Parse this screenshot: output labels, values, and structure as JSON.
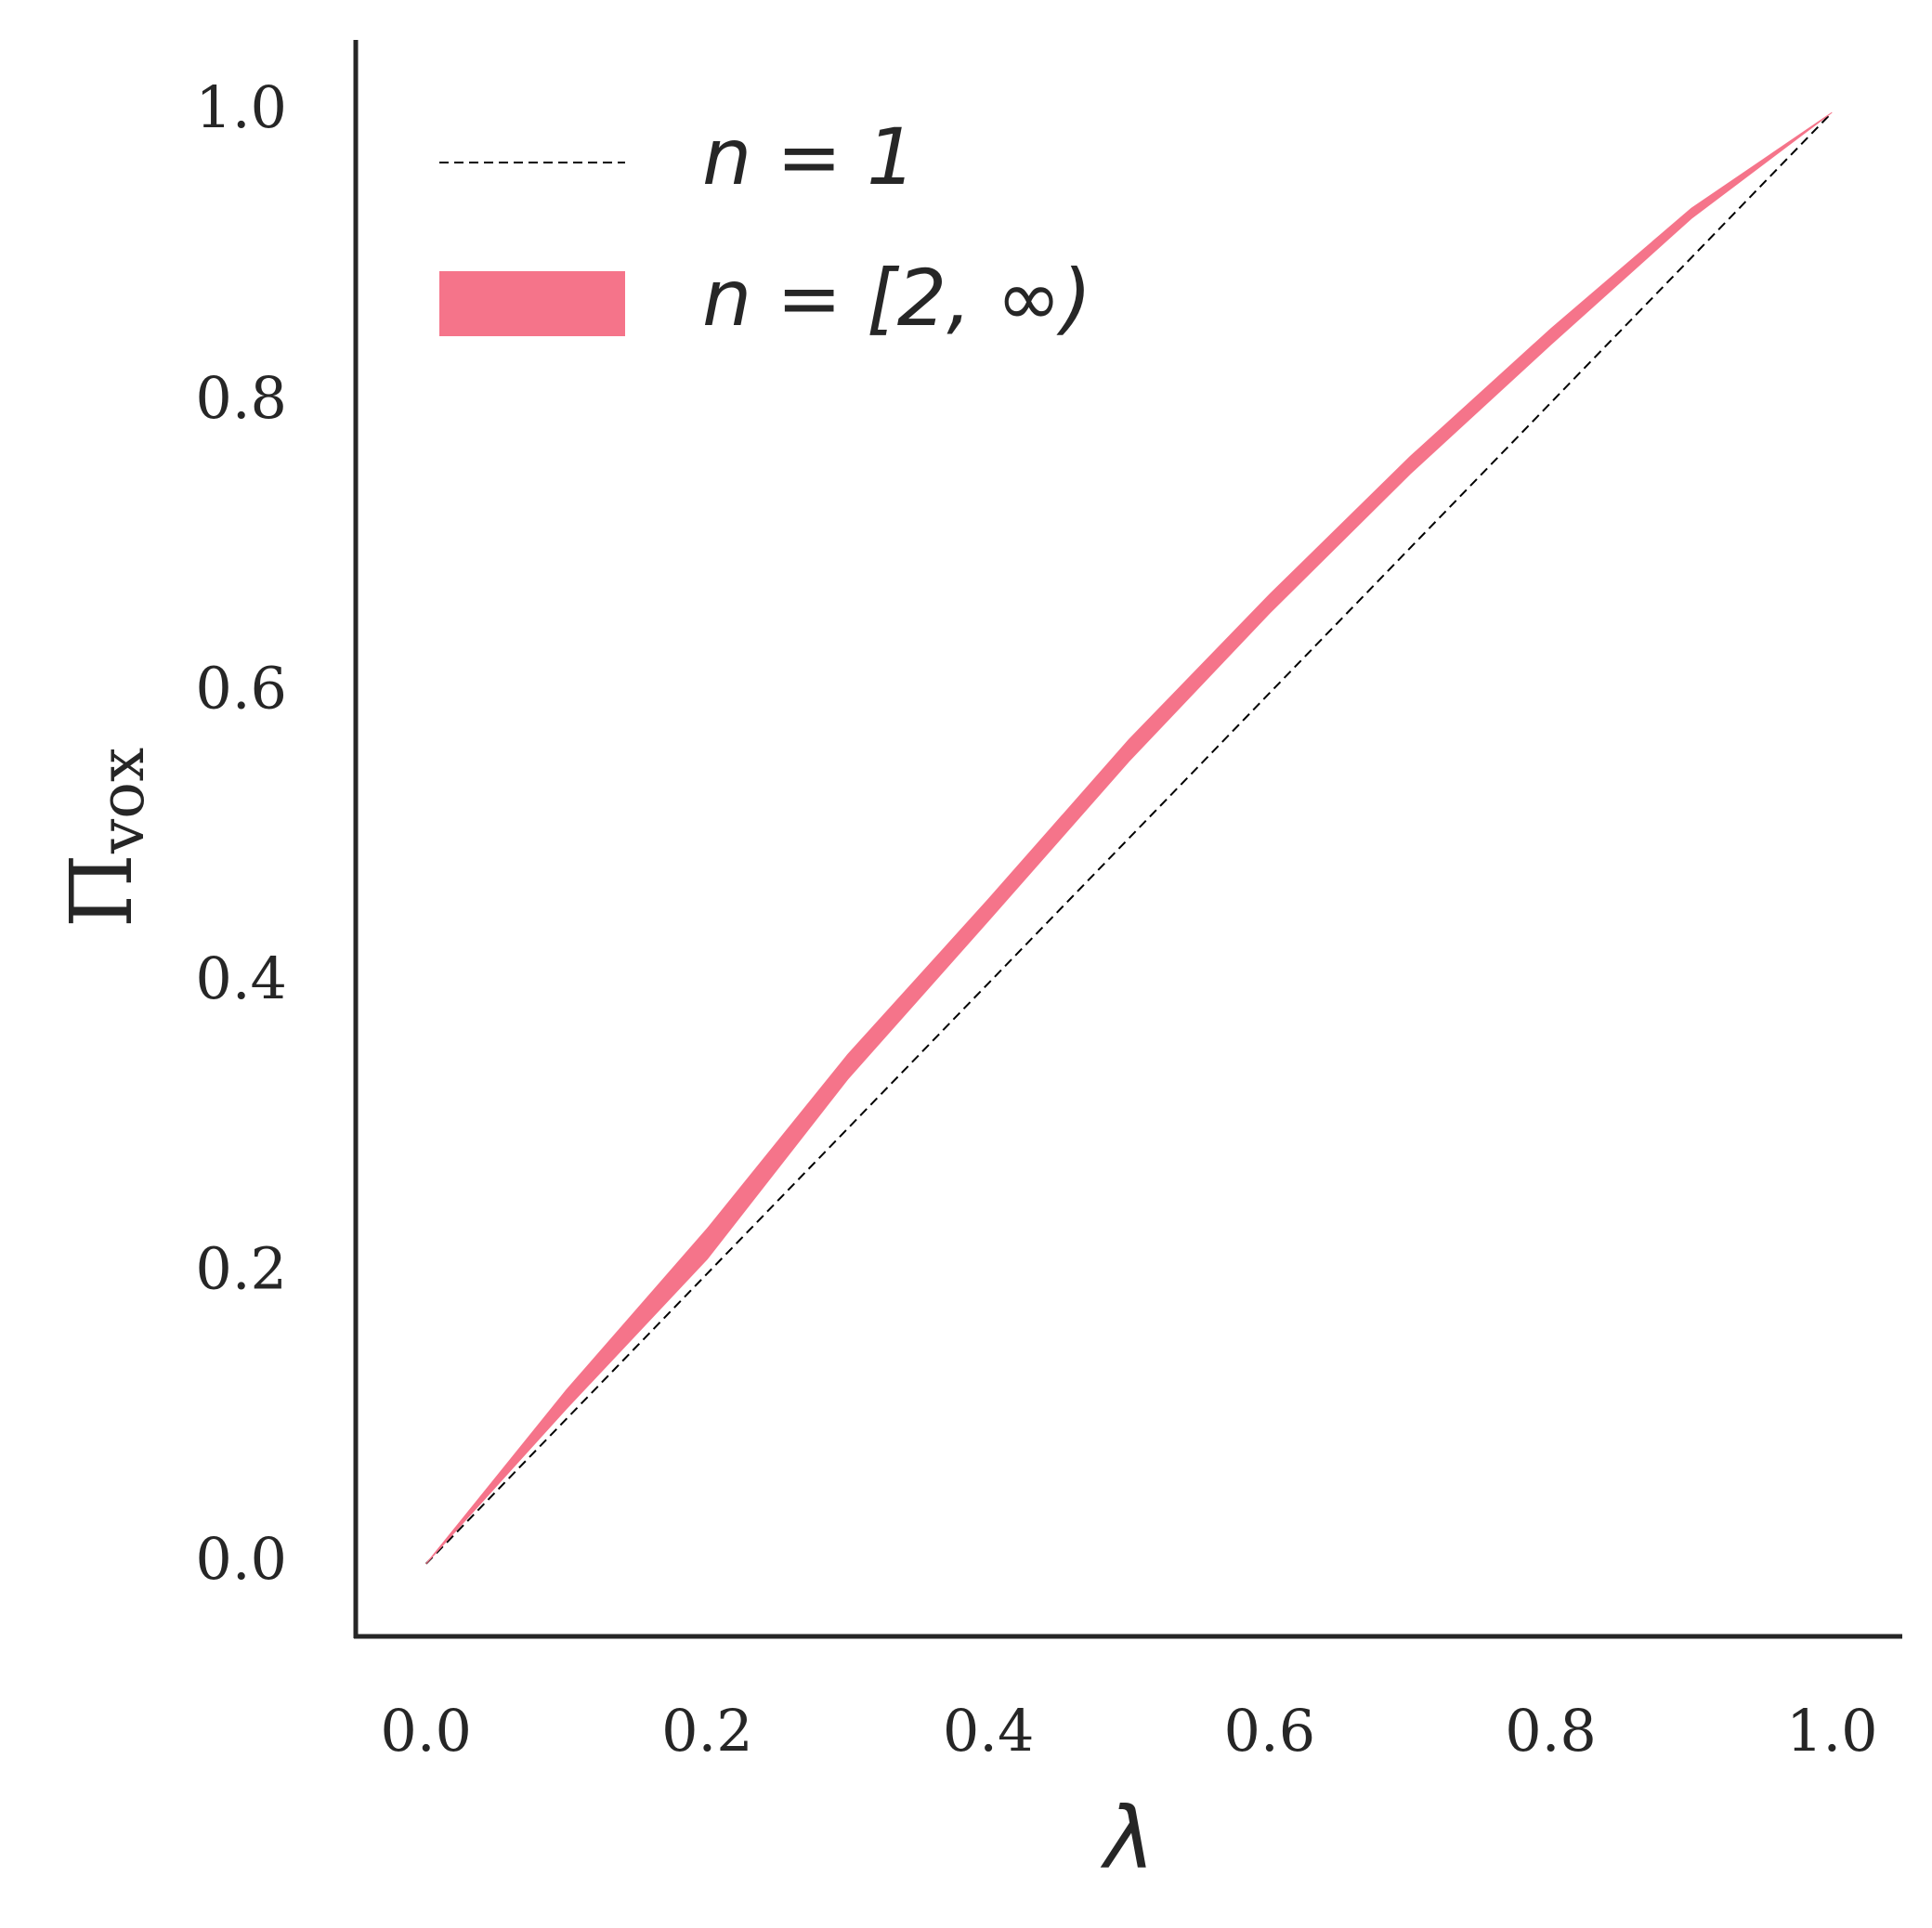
{
  "chart_data": {
    "type": "line",
    "xlabel": "λ",
    "ylabel": "Π",
    "ylabel_subscript": "vox",
    "x": [
      0,
      0.1,
      0.2,
      0.3,
      0.4,
      0.5,
      0.6,
      0.7,
      0.8,
      0.9,
      1.0
    ],
    "series": [
      {
        "name": "n = 1",
        "color": "#000000",
        "style": "dashed",
        "values": [
          0,
          0.1,
          0.2,
          0.3,
          0.4,
          0.5,
          0.6,
          0.7,
          0.8,
          0.9,
          1.0
        ]
      },
      {
        "name": "n = [2, ∞)",
        "color": "#f5748a",
        "style": "band",
        "lower": [
          0,
          0.107,
          0.21,
          0.334,
          0.443,
          0.553,
          0.655,
          0.751,
          0.84,
          0.927,
          1.0
        ],
        "upper": [
          0,
          0.12,
          0.231,
          0.351,
          0.458,
          0.568,
          0.668,
          0.763,
          0.851,
          0.934,
          1.0
        ]
      }
    ],
    "xlim": [
      -0.05,
      1.05
    ],
    "ylim": [
      -0.05,
      1.05
    ],
    "xticks": [
      {
        "value": 0,
        "label": "0.0"
      },
      0.2,
      0.4,
      0.6,
      0.8,
      {
        "value": 1,
        "label": "1.0"
      }
    ],
    "yticks": [
      {
        "value": 0,
        "label": "0.0"
      },
      0.2,
      0.4,
      0.6,
      0.8,
      {
        "value": 1,
        "label": "1.0"
      }
    ],
    "grid": false,
    "legend": "upper left"
  }
}
